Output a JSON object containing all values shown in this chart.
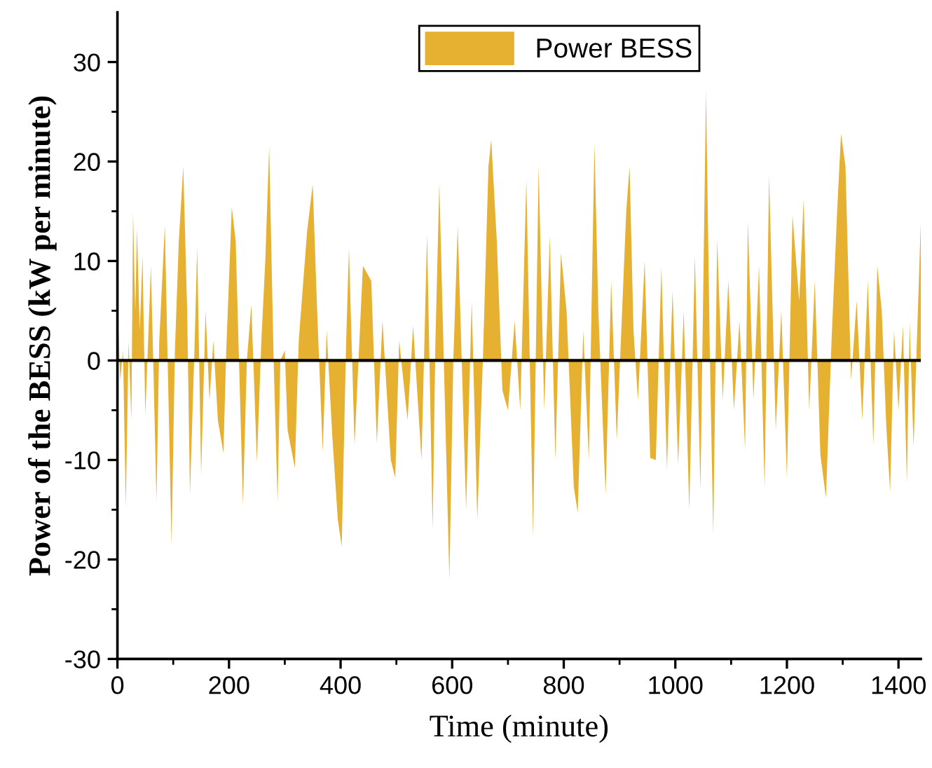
{
  "chart_data": {
    "type": "area",
    "xlabel": "Time (minute)",
    "ylabel": "Power of the BESS (kW per minute)",
    "xlim": [
      0,
      1440
    ],
    "xticks": [
      0,
      200,
      400,
      600,
      800,
      1000,
      1200,
      1400
    ],
    "ylim": [
      -30,
      35
    ],
    "yticks": [
      -30,
      -20,
      -10,
      0,
      10,
      20,
      30
    ],
    "legend": "top",
    "grid": false,
    "ref_lines": [
      {
        "axis": "y",
        "value": 0,
        "color": "#000000"
      }
    ],
    "series": [
      {
        "name": "Power BESS",
        "color": "#e6b030",
        "x": [
          0,
          5,
          10,
          15,
          20,
          25,
          28,
          32,
          35,
          40,
          45,
          50,
          55,
          60,
          65,
          70,
          75,
          85,
          90,
          97,
          103,
          110,
          118,
          125,
          130,
          138,
          143,
          150,
          158,
          165,
          172,
          180,
          190,
          195,
          205,
          212,
          225,
          232,
          240,
          250,
          258,
          265,
          272,
          280,
          287,
          292,
          300,
          305,
          318,
          325,
          340,
          350,
          358,
          368,
          375,
          385,
          395,
          402,
          410,
          415,
          425,
          440,
          455,
          465,
          475,
          490,
          498,
          505,
          520,
          530,
          545,
          555,
          565,
          570,
          577,
          585,
          595,
          602,
          610,
          625,
          635,
          645,
          655,
          665,
          670,
          680,
          690,
          700,
          712,
          722,
          733,
          745,
          755,
          765,
          775,
          785,
          795,
          805,
          818,
          825,
          835,
          845,
          855,
          862,
          875,
          885,
          895,
          912,
          918,
          925,
          933,
          945,
          955,
          965,
          975,
          985,
          995,
          1005,
          1015,
          1025,
          1035,
          1045,
          1055,
          1062,
          1068,
          1075,
          1085,
          1095,
          1105,
          1115,
          1125,
          1130,
          1140,
          1150,
          1160,
          1168,
          1180,
          1190,
          1200,
          1210,
          1222,
          1230,
          1240,
          1250,
          1260,
          1270,
          1280,
          1290,
          1297,
          1305,
          1315,
          1325,
          1335,
          1345,
          1355,
          1362,
          1370,
          1378,
          1385,
          1392,
          1400,
          1408,
          1415,
          1420,
          1427,
          1433,
          1440
        ],
        "values": [
          6,
          -2,
          1,
          -14.8,
          2,
          -6,
          15,
          5,
          13.3,
          3,
          10.5,
          -5.5,
          2,
          9.5,
          -2,
          -14.2,
          2,
          13.6,
          0,
          -18.5,
          1,
          12,
          19.5,
          5,
          -13.5,
          1,
          11.4,
          -11.5,
          5,
          -4,
          2,
          -6,
          -9.3,
          1,
          15.4,
          12,
          -14.5,
          0,
          5.6,
          -10.2,
          2,
          10,
          21.5,
          0,
          -14.2,
          0,
          1,
          -7,
          -10.8,
          2,
          13,
          17.7,
          5,
          -9.2,
          3,
          -7.5,
          -16,
          -18.7,
          2,
          11.3,
          -8.5,
          9.5,
          8,
          -8.3,
          4,
          -10,
          -11.8,
          2,
          -6,
          3.5,
          -10,
          12.7,
          -17,
          2,
          17.8,
          0,
          -22,
          0,
          13.5,
          -15,
          6,
          -16,
          0,
          19.5,
          22.2,
          12,
          -3,
          -5,
          4,
          -5,
          18.2,
          -17.7,
          19.6,
          -5,
          12.5,
          -10,
          10.8,
          5,
          -12.7,
          -15.3,
          3,
          -10,
          21.8,
          5,
          -13.5,
          8,
          -8,
          15,
          19.5,
          3,
          -4,
          10,
          -9.8,
          -10,
          9.4,
          -11,
          7,
          -10.5,
          5,
          -15,
          10.5,
          -13,
          27.2,
          0,
          -17.5,
          12.2,
          -4,
          8,
          -5,
          4,
          -9,
          14,
          -4,
          9.5,
          -12.8,
          18.6,
          -7,
          5,
          -11.8,
          14.6,
          6,
          16.2,
          -5,
          8,
          -9.5,
          -13.8,
          2,
          15,
          22.8,
          19.5,
          -2,
          6,
          -6,
          8,
          -8.5,
          9.5,
          5,
          -6.5,
          -13.2,
          3,
          -5,
          3.5,
          -12.3,
          3.8,
          -8.7,
          2,
          14
        ]
      }
    ]
  }
}
